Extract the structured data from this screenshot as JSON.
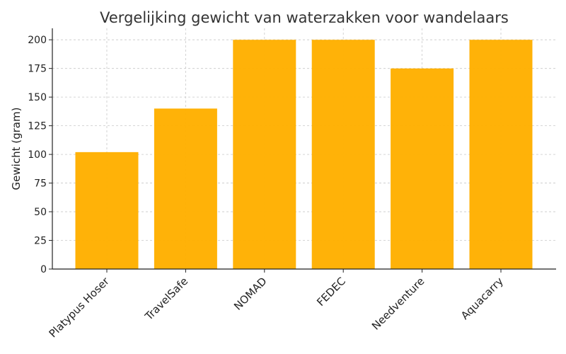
{
  "chart_data": {
    "type": "bar",
    "title": "Vergelijking gewicht van waterzakken voor wandelaars",
    "xlabel": "",
    "ylabel": "Gewicht (gram)",
    "categories": [
      "Platypus Hoser",
      "TravelSafe",
      "NOMAD",
      "FEDEC",
      "Needventure",
      "Aquacarry"
    ],
    "values": [
      102,
      140,
      200,
      200,
      175,
      200
    ],
    "ylim": [
      0,
      210
    ],
    "yticks": [
      0,
      25,
      50,
      75,
      100,
      125,
      150,
      175,
      200
    ],
    "grid": true,
    "bar_color": "#FFB000"
  }
}
